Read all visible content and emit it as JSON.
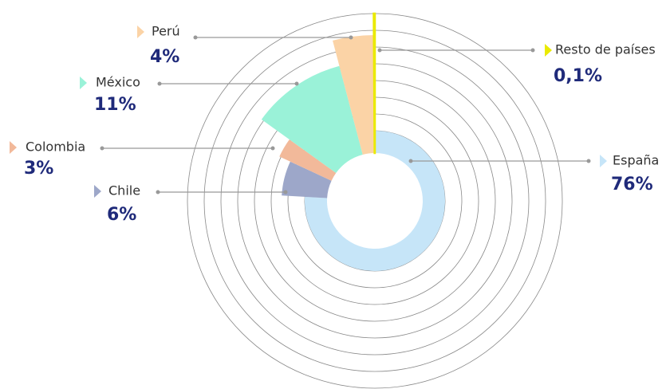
{
  "chart_data": {
    "type": "pie",
    "categories": [
      "España",
      "Chile",
      "Colombia",
      "México",
      "Perú",
      "Resto de países"
    ],
    "values": [
      76,
      6,
      3,
      11,
      4,
      0.1
    ],
    "value_labels": [
      "76%",
      "6%",
      "3%",
      "11%",
      "4%",
      "0,1%"
    ],
    "colors": [
      "#c6e5f8",
      "#9da7c9",
      "#f2b99a",
      "#9af2d8",
      "#fbd3a6",
      "#eaea00"
    ]
  }
}
